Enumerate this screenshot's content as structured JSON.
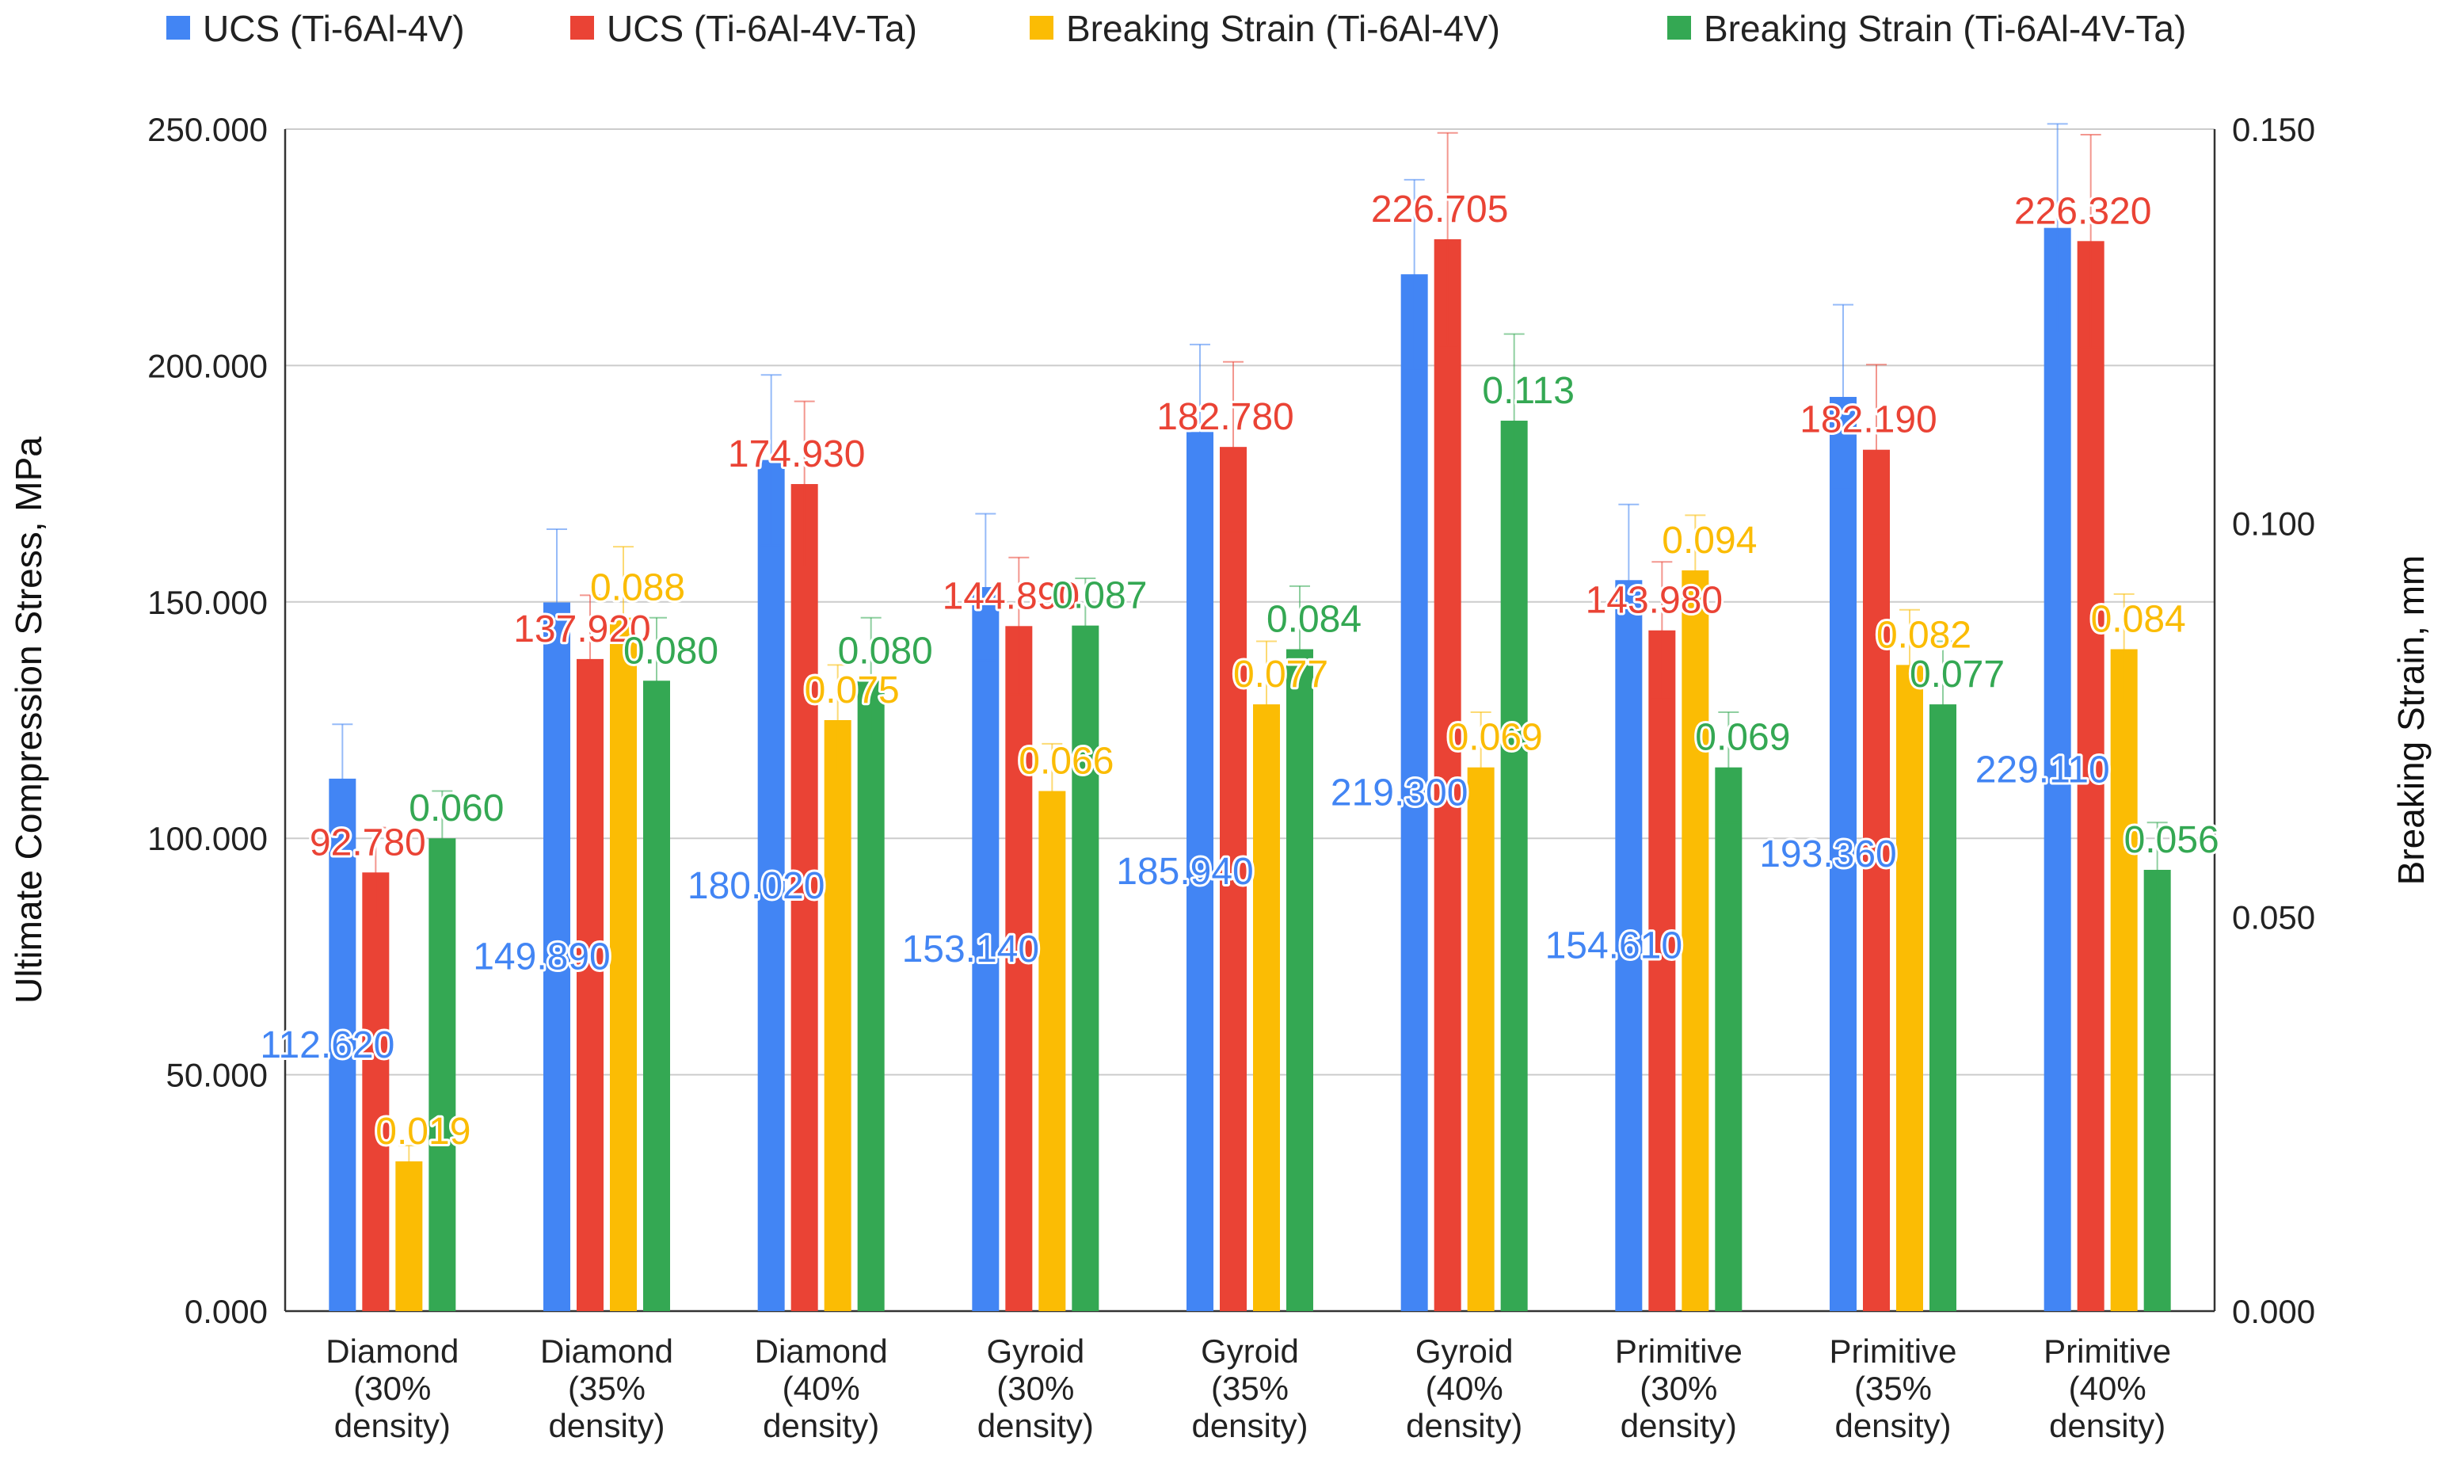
{
  "chart_data": {
    "type": "bar",
    "title": "",
    "categories": [
      [
        "Diamond",
        "(30%",
        "density)"
      ],
      [
        "Diamond",
        "(35%",
        "density)"
      ],
      [
        "Diamond",
        "(40%",
        "density)"
      ],
      [
        "Gyroid",
        "(30%",
        "density)"
      ],
      [
        "Gyroid",
        "(35%",
        "density)"
      ],
      [
        "Gyroid",
        "(40%",
        "density)"
      ],
      [
        "Primitive",
        "(30%",
        "density)"
      ],
      [
        "Primitive",
        "(35%",
        "density)"
      ],
      [
        "Primitive",
        "(40%",
        "density)"
      ]
    ],
    "ylabel": "Ultimate Compression Stress, MPa",
    "y2label": "Breaking Strain, mm",
    "ylim": [
      0,
      250
    ],
    "y2lim": [
      0,
      0.15
    ],
    "yticks": [
      "0.000",
      "50.000",
      "100.000",
      "150.000",
      "200.000",
      "250.000"
    ],
    "y2ticks": [
      "0.000",
      "0.050",
      "0.100",
      "0.150"
    ],
    "grid": true,
    "legend_position": "top",
    "series": [
      {
        "name": "UCS (Ti-6Al-4V)",
        "color": "#4285F4",
        "axis": "left",
        "values": [
          112.62,
          149.89,
          180.02,
          153.14,
          185.94,
          219.3,
          154.61,
          193.36,
          229.11
        ],
        "errors": [
          11.5,
          15.5,
          18.0,
          15.5,
          18.5,
          20.0,
          16.0,
          19.5,
          22.0
        ],
        "labels": [
          "112.620",
          "149.890",
          "180.020",
          "153.140",
          "185.940",
          "219.300",
          "154.610",
          "193.360",
          "229.110"
        ]
      },
      {
        "name": "UCS (Ti-6Al-4V-Ta)",
        "color": "#EA4335",
        "axis": "left",
        "values": [
          92.78,
          137.92,
          174.93,
          144.89,
          182.78,
          226.705,
          143.98,
          182.19,
          226.32
        ],
        "errors": [
          9.5,
          13.5,
          17.5,
          14.5,
          18.0,
          22.5,
          14.5,
          18.0,
          22.5
        ],
        "labels": [
          "92.780",
          "137.920",
          "174.930",
          "144.890",
          "182.780",
          "226.705",
          "143.980",
          "182.190",
          "226.320"
        ]
      },
      {
        "name": "Breaking Strain (Ti-6Al-4V)",
        "color": "#FBBC04",
        "axis": "right",
        "values": [
          0.019,
          0.088,
          0.075,
          0.066,
          0.077,
          0.069,
          0.094,
          0.082,
          0.084
        ],
        "errors": [
          0.002,
          0.009,
          0.007,
          0.006,
          0.008,
          0.007,
          0.007,
          0.007,
          0.007
        ],
        "labels": [
          "0.019",
          "0.088",
          "0.075",
          "0.066",
          "0.077",
          "0.069",
          "0.094",
          "0.082",
          "0.084"
        ]
      },
      {
        "name": "Breaking Strain (Ti-6Al-4V-Ta)",
        "color": "#34A853",
        "axis": "right",
        "values": [
          0.06,
          0.08,
          0.08,
          0.087,
          0.084,
          0.113,
          0.069,
          0.077,
          0.056
        ],
        "errors": [
          0.006,
          0.008,
          0.008,
          0.006,
          0.008,
          0.011,
          0.007,
          0.008,
          0.006
        ],
        "labels": [
          "0.060",
          "0.080",
          "0.080",
          "0.087",
          "0.084",
          "0.113",
          "0.069",
          "0.077",
          "0.056"
        ]
      }
    ]
  }
}
